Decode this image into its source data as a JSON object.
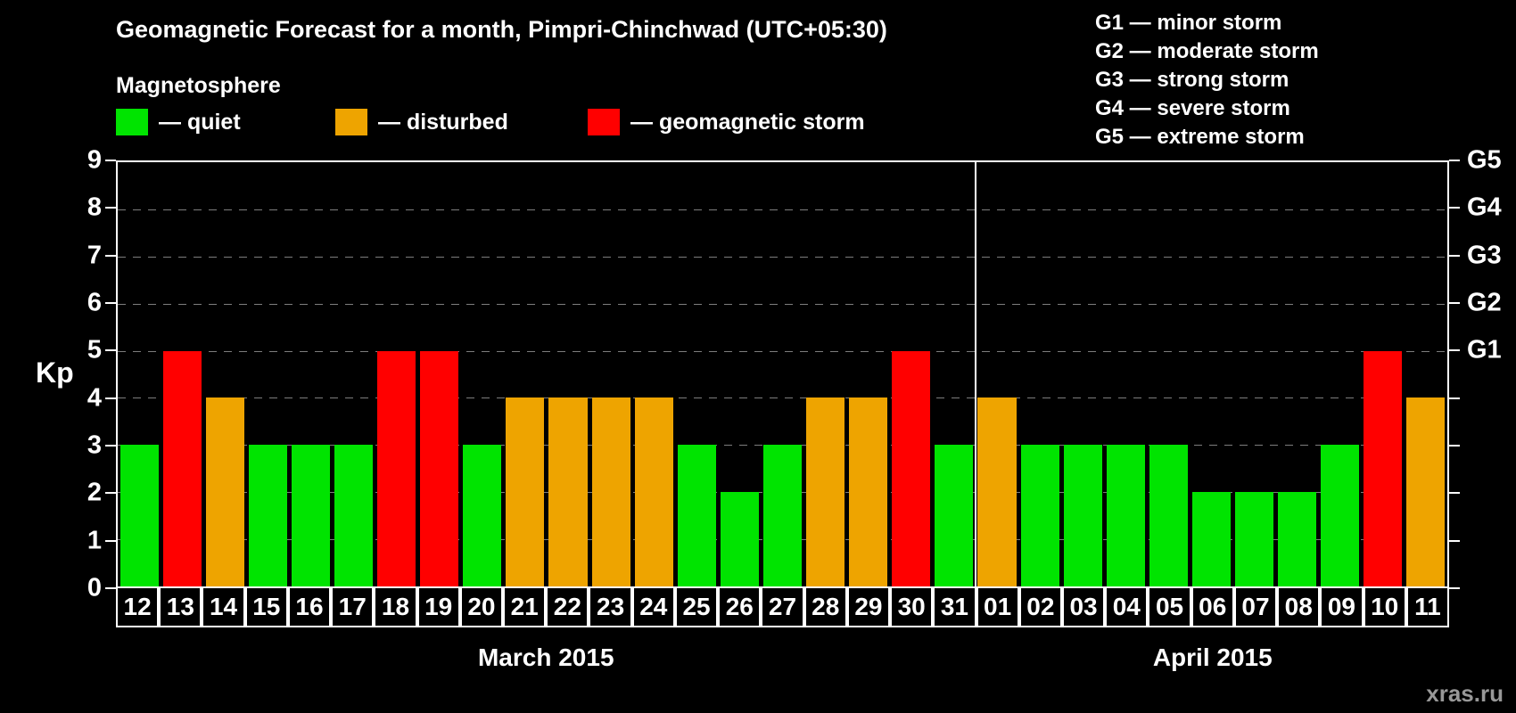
{
  "title": "Geomagnetic Forecast for a month, Pimpri-Chinchwad (UTC+05:30)",
  "legend": {
    "heading": "Magnetosphere",
    "items": [
      {
        "key": "quiet",
        "label": "— quiet",
        "color": "#00e400"
      },
      {
        "key": "disturbed",
        "label": "— disturbed",
        "color": "#eea400"
      },
      {
        "key": "storm",
        "label": "— geomagnetic storm",
        "color": "#ff0000"
      }
    ]
  },
  "g_scale_legend": [
    "G1 — minor storm",
    "G2 — moderate storm",
    "G3 — strong storm",
    "G4 — severe storm",
    "G5 — extreme storm"
  ],
  "watermark": "xras.ru",
  "chart_data": {
    "type": "bar",
    "title": "Geomagnetic Forecast for a month, Pimpri-Chinchwad (UTC+05:30)",
    "ylabel": "Kp",
    "ylim": [
      0,
      9
    ],
    "yticks": [
      0,
      1,
      2,
      3,
      4,
      5,
      6,
      7,
      8,
      9
    ],
    "grid": "dashed horizontal lines at integer Kp values",
    "legend_position": "top",
    "right_axis": [
      {
        "label": "G1",
        "value": 5
      },
      {
        "label": "G2",
        "value": 6
      },
      {
        "label": "G3",
        "value": 7
      },
      {
        "label": "G4",
        "value": 8
      },
      {
        "label": "G5",
        "value": 9
      }
    ],
    "months": [
      {
        "label": "March 2015",
        "days": 20
      },
      {
        "label": "April 2015",
        "days": 11
      }
    ],
    "categories": [
      "12",
      "13",
      "14",
      "15",
      "16",
      "17",
      "18",
      "19",
      "20",
      "21",
      "22",
      "23",
      "24",
      "25",
      "26",
      "27",
      "28",
      "29",
      "30",
      "31",
      "01",
      "02",
      "03",
      "04",
      "05",
      "06",
      "07",
      "08",
      "09",
      "10",
      "11"
    ],
    "values": [
      3,
      5,
      4,
      3,
      3,
      3,
      5,
      5,
      3,
      4,
      4,
      4,
      4,
      3,
      2,
      3,
      4,
      4,
      5,
      3,
      4,
      3,
      3,
      3,
      3,
      2,
      2,
      2,
      3,
      5,
      4
    ],
    "statuses": [
      "quiet",
      "storm",
      "disturbed",
      "quiet",
      "quiet",
      "quiet",
      "storm",
      "storm",
      "quiet",
      "disturbed",
      "disturbed",
      "disturbed",
      "disturbed",
      "quiet",
      "quiet",
      "quiet",
      "disturbed",
      "disturbed",
      "storm",
      "quiet",
      "disturbed",
      "quiet",
      "quiet",
      "quiet",
      "quiet",
      "quiet",
      "quiet",
      "quiet",
      "quiet",
      "storm",
      "disturbed"
    ]
  }
}
